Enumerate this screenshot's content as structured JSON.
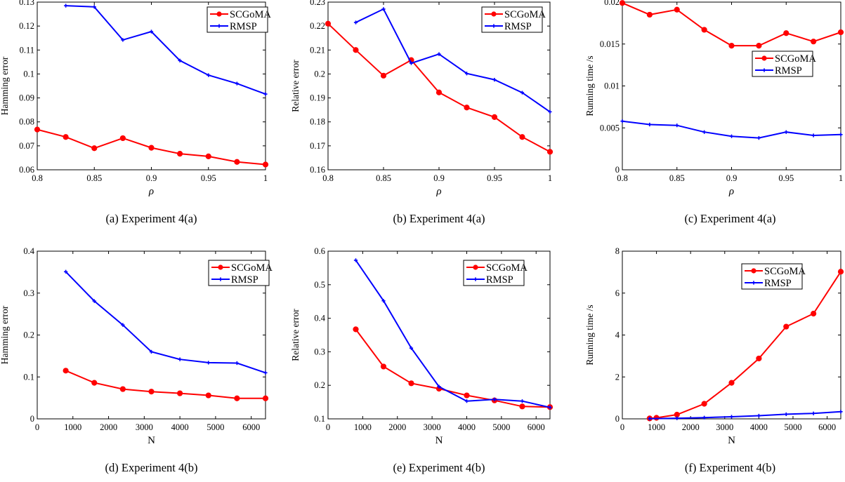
{
  "legend": {
    "s1": "SCGoMA",
    "s2": "RMSP"
  },
  "colors": {
    "s1": "#ff0000",
    "s2": "#0000ff"
  },
  "chart_data": [
    {
      "type": "line",
      "caption": "(a)  Experiment 4(a)",
      "xlabel": "ρ",
      "xlabel_italic": true,
      "ylabel": "Hamming error",
      "xlim": [
        0.8,
        1
      ],
      "ylim": [
        0.06,
        0.13
      ],
      "xticks": [
        0.8,
        0.85,
        0.9,
        0.95,
        1
      ],
      "xticklabels": [
        "0.8",
        "0.85",
        "0.9",
        "0.95",
        "1"
      ],
      "yticks": [
        0.06,
        0.07,
        0.08,
        0.09,
        0.1,
        0.11,
        0.12,
        0.13
      ],
      "yticklabels": [
        "0.06",
        "0.07",
        "0.08",
        "0.09",
        "0.1",
        "0.11",
        "0.12",
        "0.13"
      ],
      "legend_position": "top-right",
      "series": [
        {
          "name": "SCGoMA",
          "x": [
            0.8,
            0.825,
            0.85,
            0.875,
            0.9,
            0.925,
            0.95,
            0.975,
            1
          ],
          "y": [
            0.0768,
            0.0737,
            0.069,
            0.0732,
            0.0692,
            0.0667,
            0.0656,
            0.0633,
            0.0622
          ]
        },
        {
          "name": "RMSP",
          "x": [
            0.825,
            0.85,
            0.875,
            0.9,
            0.925,
            0.95,
            0.975,
            1
          ],
          "y": [
            0.1285,
            0.128,
            0.1142,
            0.1177,
            0.1056,
            0.0995,
            0.096,
            0.0916
          ]
        }
      ]
    },
    {
      "type": "line",
      "caption": "(b)  Experiment 4(a)",
      "xlabel": "ρ",
      "xlabel_italic": true,
      "ylabel": "Relative error",
      "xlim": [
        0.8,
        1
      ],
      "ylim": [
        0.16,
        0.23
      ],
      "xticks": [
        0.8,
        0.85,
        0.9,
        0.95,
        1
      ],
      "xticklabels": [
        "0.8",
        "0.85",
        "0.9",
        "0.95",
        "1"
      ],
      "yticks": [
        0.16,
        0.17,
        0.18,
        0.19,
        0.2,
        0.21,
        0.22,
        0.23
      ],
      "yticklabels": [
        "0.16",
        "0.17",
        "0.18",
        "0.19",
        "0.2",
        "0.21",
        "0.22",
        "0.23"
      ],
      "legend_position": "top-right",
      "series": [
        {
          "name": "SCGoMA",
          "x": [
            0.8,
            0.825,
            0.85,
            0.875,
            0.9,
            0.925,
            0.95,
            0.975,
            1
          ],
          "y": [
            0.221,
            0.21,
            0.1993,
            0.2058,
            0.1923,
            0.186,
            0.182,
            0.1737,
            0.1675
          ]
        },
        {
          "name": "RMSP",
          "x": [
            0.825,
            0.85,
            0.875,
            0.9,
            0.925,
            0.95,
            0.975,
            1
          ],
          "y": [
            0.2215,
            0.2271,
            0.2045,
            0.2083,
            0.2002,
            0.1976,
            0.1922,
            0.1842
          ]
        }
      ]
    },
    {
      "type": "line",
      "caption": "(c)  Experiment 4(a)",
      "xlabel": "ρ",
      "xlabel_italic": true,
      "ylabel": "Running time /s",
      "xlim": [
        0.8,
        1
      ],
      "ylim": [
        0,
        0.02
      ],
      "xticks": [
        0.8,
        0.85,
        0.9,
        0.95,
        1
      ],
      "xticklabels": [
        "0.8",
        "0.85",
        "0.9",
        "0.95",
        "1"
      ],
      "yticks": [
        0,
        0.005,
        0.01,
        0.015,
        0.02
      ],
      "yticklabels": [
        "0",
        "0.005",
        "0.01",
        "0.015",
        "0.02"
      ],
      "legend_position": "center-right",
      "series": [
        {
          "name": "SCGoMA",
          "x": [
            0.8,
            0.825,
            0.85,
            0.875,
            0.9,
            0.925,
            0.95,
            0.975,
            1
          ],
          "y": [
            0.0199,
            0.0185,
            0.0191,
            0.0167,
            0.0148,
            0.0148,
            0.0163,
            0.0153,
            0.0164
          ]
        },
        {
          "name": "RMSP",
          "x": [
            0.8,
            0.825,
            0.85,
            0.875,
            0.9,
            0.925,
            0.95,
            0.975,
            1
          ],
          "y": [
            0.0058,
            0.0054,
            0.0053,
            0.0045,
            0.004,
            0.0038,
            0.0045,
            0.0041,
            0.0042
          ]
        }
      ]
    },
    {
      "type": "line",
      "caption": "(d)  Experiment 4(b)",
      "xlabel": "N",
      "xlabel_italic": false,
      "ylabel": "Hamming error",
      "xlim": [
        0,
        6400
      ],
      "ylim": [
        0,
        0.4
      ],
      "xticks": [
        0,
        1000,
        2000,
        3000,
        4000,
        5000,
        6000
      ],
      "xticklabels": [
        "0",
        "1000",
        "2000",
        "3000",
        "4000",
        "5000",
        "6000"
      ],
      "yticks": [
        0,
        0.1,
        0.2,
        0.3,
        0.4
      ],
      "yticklabels": [
        "0",
        "0.1",
        "0.2",
        "0.3",
        "0.4"
      ],
      "legend_position": "top-right",
      "series": [
        {
          "name": "SCGoMA",
          "x": [
            800,
            1600,
            2400,
            3200,
            4000,
            4800,
            5600,
            6400
          ],
          "y": [
            0.115,
            0.086,
            0.071,
            0.065,
            0.061,
            0.056,
            0.049,
            0.049
          ]
        },
        {
          "name": "RMSP",
          "x": [
            800,
            1600,
            2400,
            3200,
            4000,
            4800,
            5600,
            6400
          ],
          "y": [
            0.351,
            0.281,
            0.224,
            0.16,
            0.142,
            0.134,
            0.133,
            0.11
          ]
        }
      ]
    },
    {
      "type": "line",
      "caption": "(e)  Experiment 4(b)",
      "xlabel": "N",
      "xlabel_italic": false,
      "ylabel": "Relative error",
      "xlim": [
        0,
        6400
      ],
      "ylim": [
        0.1,
        0.6
      ],
      "xticks": [
        0,
        1000,
        2000,
        3000,
        4000,
        5000,
        6000
      ],
      "xticklabels": [
        "0",
        "1000",
        "2000",
        "3000",
        "4000",
        "5000",
        "6000"
      ],
      "yticks": [
        0.1,
        0.2,
        0.3,
        0.4,
        0.5,
        0.6
      ],
      "yticklabels": [
        "0.1",
        "0.2",
        "0.3",
        "0.4",
        "0.5",
        "0.6"
      ],
      "legend_position": "top-right",
      "series": [
        {
          "name": "SCGoMA",
          "x": [
            800,
            1600,
            2400,
            3200,
            4000,
            4800,
            5600,
            6400
          ],
          "y": [
            0.367,
            0.256,
            0.206,
            0.19,
            0.17,
            0.155,
            0.137,
            0.135
          ]
        },
        {
          "name": "RMSP",
          "x": [
            800,
            1600,
            2400,
            3200,
            4000,
            4800,
            5600,
            6400
          ],
          "y": [
            0.573,
            0.452,
            0.311,
            0.196,
            0.153,
            0.158,
            0.153,
            0.134
          ]
        }
      ]
    },
    {
      "type": "line",
      "caption": "(f)  Experiment 4(b)",
      "xlabel": "N",
      "xlabel_italic": false,
      "ylabel": "Running time /s",
      "xlim": [
        0,
        6400
      ],
      "ylim": [
        0,
        8
      ],
      "xticks": [
        0,
        1000,
        2000,
        3000,
        4000,
        5000,
        6000
      ],
      "xticklabels": [
        "0",
        "1000",
        "2000",
        "3000",
        "4000",
        "5000",
        "6000"
      ],
      "yticks": [
        0,
        2,
        4,
        6,
        8
      ],
      "yticklabels": [
        "0",
        "2",
        "4",
        "6",
        "8"
      ],
      "legend_position": "top-right",
      "series": [
        {
          "name": "SCGoMA",
          "x": [
            800,
            1000,
            1600,
            2400,
            3200,
            4000,
            4800,
            5600,
            6400
          ],
          "y": [
            0.02,
            0.05,
            0.2,
            0.72,
            1.72,
            2.88,
            4.4,
            5.02,
            7.02
          ]
        },
        {
          "name": "RMSP",
          "x": [
            800,
            1600,
            2400,
            3200,
            4000,
            4800,
            5600,
            6400
          ],
          "y": [
            0.01,
            0.03,
            0.06,
            0.1,
            0.15,
            0.22,
            0.26,
            0.34
          ]
        }
      ]
    }
  ]
}
